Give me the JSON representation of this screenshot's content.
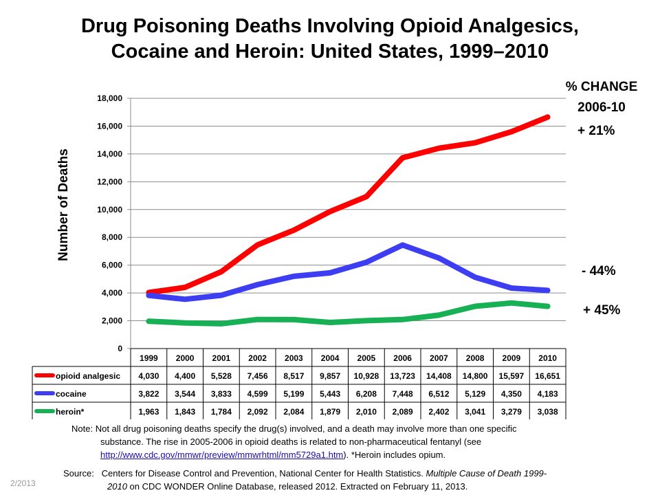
{
  "title_line1": "Drug Poisoning Deaths Involving Opioid Analgesics,",
  "title_line2": "Cocaine and Heroin:  United States, 1999–2010",
  "pct_change_header": "% CHANGE",
  "pct_change_period": "2006-10",
  "pct_changes": {
    "opioid": "+ 21%",
    "cocaine": "- 44%",
    "heroin": "+ 45%"
  },
  "note": {
    "prefix": "Note:",
    "line1": "Not all drug poisoning deaths specify the drug(s) involved, and a death may involve more than one specific",
    "line2": "substance.  The rise in 2005-2006 in opioid deaths is related to non-pharmaceutical  fentanyl (see",
    "link": "http://www.cdc.gov/mmwr/preview/mmwrhtml/mm5729a1.htm",
    "line3_after": ").   *Heroin includes opium."
  },
  "source": {
    "prefix": "Source:",
    "text1": "Centers for Disease Control and Prevention,  National Center for Health Statistics. ",
    "italic1": "Multiple Cause of Death 1999-",
    "italic2": "2010",
    "text2": "  on CDC WONDER Online Database, released 2012.  Extracted on February 11, 2013."
  },
  "datestamp": "2/2013",
  "chart_data": {
    "type": "line",
    "title": "Drug Poisoning Deaths Involving Opioid Analgesics, Cocaine and Heroin:  United States, 1999–2010",
    "xlabel": "",
    "ylabel": "Number of Deaths",
    "ylim": [
      0,
      18000
    ],
    "ytick_step": 2000,
    "ytick_labels": [
      "0",
      "2,000",
      "4,000",
      "6,000",
      "8,000",
      "10,000",
      "12,000",
      "14,000",
      "16,000",
      "18,000"
    ],
    "grid": true,
    "categories": [
      "1999",
      "2000",
      "2001",
      "2002",
      "2003",
      "2004",
      "2005",
      "2006",
      "2007",
      "2008",
      "2009",
      "2010"
    ],
    "series": [
      {
        "name": "opioid analgesic",
        "color": "#ff0000",
        "values": [
          4030,
          4400,
          5528,
          7456,
          8517,
          9857,
          10928,
          13723,
          14408,
          14800,
          15597,
          16651
        ],
        "labels": [
          "4,030",
          "4,400",
          "5,528",
          "7,456",
          "8,517",
          "9,857",
          "10,928",
          "13,723",
          "14,408",
          "14,800",
          "15,597",
          "16,651"
        ]
      },
      {
        "name": "cocaine",
        "color": "#3d3df2",
        "values": [
          3822,
          3544,
          3833,
          4599,
          5199,
          5443,
          6208,
          7448,
          6512,
          5129,
          4350,
          4183
        ],
        "labels": [
          "3,822",
          "3,544",
          "3,833",
          "4,599",
          "5,199",
          "5,443",
          "6,208",
          "7,448",
          "6,512",
          "5,129",
          "4,350",
          "4,183"
        ]
      },
      {
        "name": "heroin*",
        "color": "#17b055",
        "values": [
          1963,
          1843,
          1784,
          2092,
          2084,
          1879,
          2010,
          2089,
          2402,
          3041,
          3279,
          3038
        ],
        "labels": [
          "1,963",
          "1,843",
          "1,784",
          "2,092",
          "2,084",
          "1,879",
          "2,010",
          "2,089",
          "2,402",
          "3,041",
          "3,279",
          "3,038"
        ]
      }
    ]
  }
}
